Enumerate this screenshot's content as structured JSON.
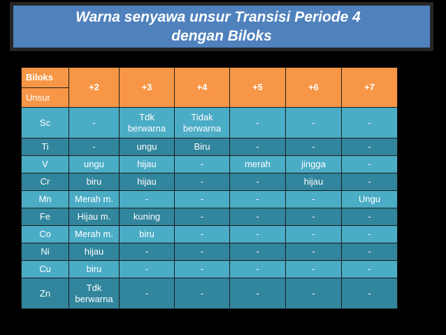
{
  "title": {
    "line1": "Warna senyawa unsur Transisi Periode 4",
    "line2": "dengan Biloks"
  },
  "table": {
    "corner_top": "Biloks",
    "corner_bottom": "Unsur",
    "headers": [
      "+2",
      "+3",
      "+4",
      "+5",
      "+6",
      "+7"
    ],
    "rows": [
      {
        "element": "Sc",
        "values": [
          "-",
          "Tdk berwarna",
          "Tidak berwarna",
          "-",
          "-",
          "-"
        ]
      },
      {
        "element": "Ti",
        "values": [
          "-",
          "ungu",
          "Biru",
          "-",
          "-",
          "-"
        ]
      },
      {
        "element": "V",
        "values": [
          "ungu",
          "hijau",
          "-",
          "merah",
          "jingga",
          "-"
        ]
      },
      {
        "element": "Cr",
        "values": [
          "biru",
          "hijau",
          "-",
          "-",
          "hijau",
          "-"
        ]
      },
      {
        "element": "Mn",
        "values": [
          "Merah m.",
          "-",
          "-",
          "-",
          "-",
          "Ungu"
        ]
      },
      {
        "element": "Fe",
        "values": [
          "Hijau m.",
          "kuning",
          "-",
          "-",
          "-",
          "-"
        ]
      },
      {
        "element": "Co",
        "values": [
          "Merah m.",
          "biru",
          "-",
          "-",
          "-",
          "-"
        ]
      },
      {
        "element": "Ni",
        "values": [
          "hijau",
          "-",
          "-",
          "-",
          "-",
          "-"
        ]
      },
      {
        "element": "Cu",
        "values": [
          "biru",
          "-",
          "-",
          "-",
          "-",
          "-"
        ]
      },
      {
        "element": "Zn",
        "values": [
          "Tdk berwarna",
          "-",
          "-",
          "-",
          "-",
          "-"
        ]
      }
    ]
  },
  "colors": {
    "title_bg": "#4f81bd",
    "header_bg": "#f79646",
    "row_light": "#4bacc6",
    "row_dark": "#31859c"
  }
}
